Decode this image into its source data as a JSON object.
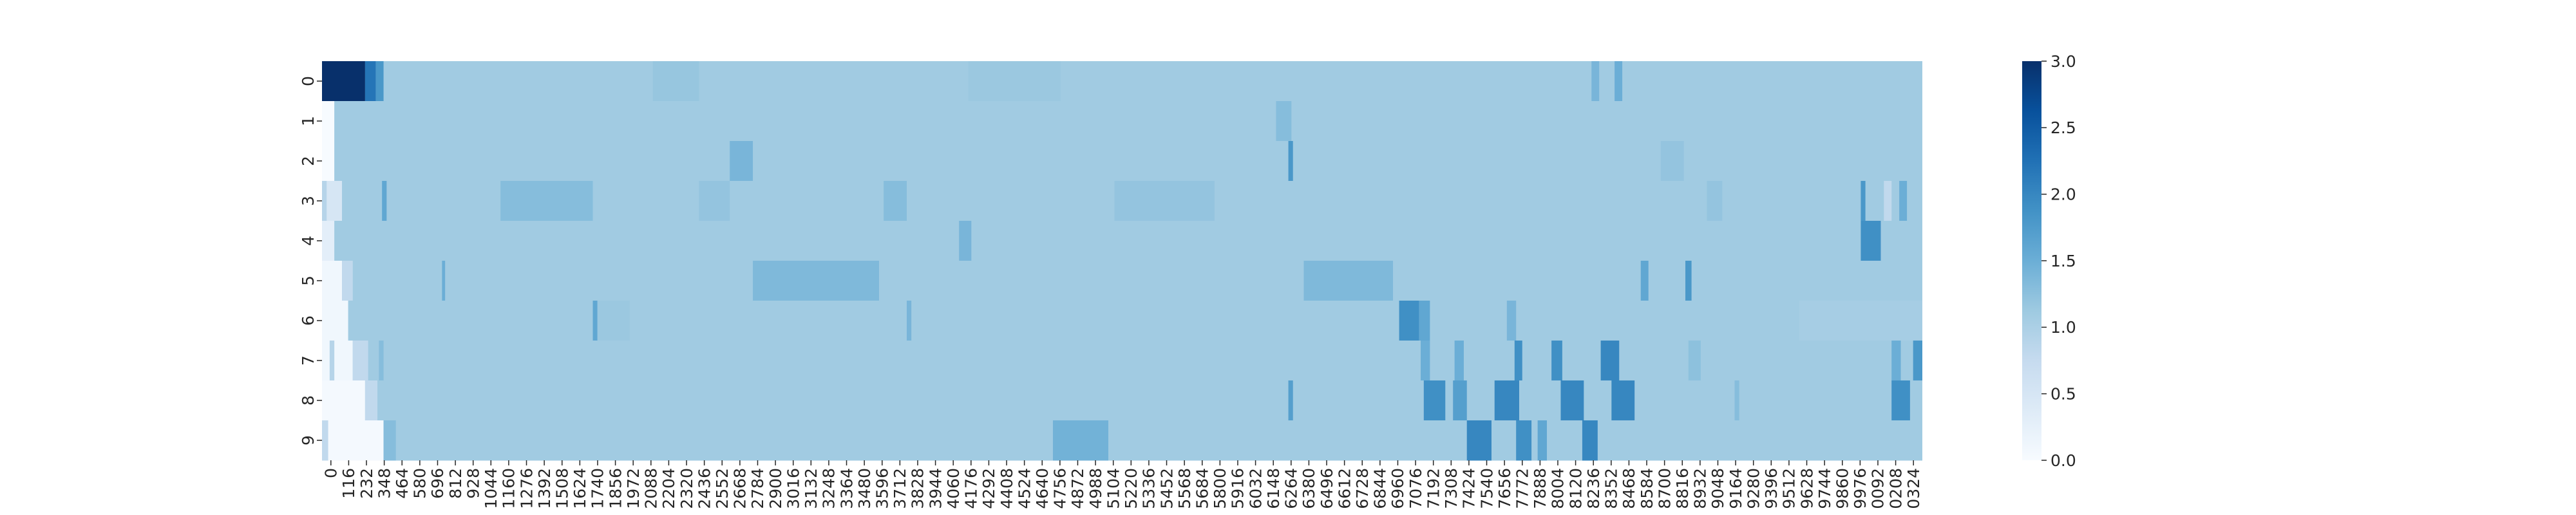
{
  "chart_data": {
    "type": "heatmap",
    "title": "",
    "xlabel": "",
    "ylabel": "",
    "y_categories": [
      "0",
      "1",
      "2",
      "3",
      "4",
      "5",
      "6",
      "7",
      "8",
      "9"
    ],
    "x_range": [
      0,
      10400
    ],
    "x_tick_labels": [
      "0",
      "116",
      "232",
      "348",
      "464",
      "580",
      "696",
      "812",
      "928",
      "1044",
      "1160",
      "1276",
      "1392",
      "1508",
      "1624",
      "1740",
      "1856",
      "1972",
      "2088",
      "2204",
      "2320",
      "2436",
      "2552",
      "2668",
      "2784",
      "2900",
      "3016",
      "3132",
      "3248",
      "3364",
      "3480",
      "3596",
      "3712",
      "3828",
      "3944",
      "4060",
      "4176",
      "4292",
      "4408",
      "4524",
      "4640",
      "4756",
      "4872",
      "4988",
      "5104",
      "5220",
      "5336",
      "5452",
      "5568",
      "5684",
      "5800",
      "5916",
      "6032",
      "6148",
      "6264",
      "6380",
      "6496",
      "6612",
      "6728",
      "6844",
      "6960",
      "7076",
      "7192",
      "7308",
      "7424",
      "7540",
      "7656",
      "7772",
      "7888",
      "8004",
      "8120",
      "8236",
      "8352",
      "8468",
      "8584",
      "8700",
      "8816",
      "8932",
      "9048",
      "9164",
      "9280",
      "9396",
      "9512",
      "9628",
      "9744",
      "9860",
      "9976",
      "0092",
      "0208",
      "0324"
    ],
    "colorbar": {
      "min": 0.0,
      "max": 3.0,
      "tick_labels": [
        "0.0",
        "0.5",
        "1.0",
        "1.5",
        "2.0",
        "2.5",
        "3.0"
      ],
      "colormap": "Blues"
    },
    "base_value": 1.1,
    "rows": [
      {
        "row": "0",
        "segments": [
          [
            0,
            280,
            3.0
          ],
          [
            280,
            350,
            2.2
          ],
          [
            350,
            400,
            1.8
          ],
          [
            2150,
            2450,
            1.18
          ],
          [
            4200,
            4800,
            1.15
          ],
          [
            8250,
            8300,
            1.4
          ],
          [
            8400,
            8450,
            1.5
          ]
        ]
      },
      {
        "row": "1",
        "segments": [
          [
            0,
            80,
            0.0
          ],
          [
            6200,
            6300,
            1.3
          ]
        ]
      },
      {
        "row": "2",
        "segments": [
          [
            0,
            80,
            0.0
          ],
          [
            2650,
            2800,
            1.4
          ],
          [
            6280,
            6310,
            1.8
          ],
          [
            8700,
            8850,
            1.2
          ]
        ]
      },
      {
        "row": "3",
        "segments": [
          [
            0,
            30,
            0.9
          ],
          [
            30,
            130,
            0.5
          ],
          [
            390,
            420,
            1.6
          ],
          [
            1160,
            1760,
            1.3
          ],
          [
            2450,
            2650,
            1.2
          ],
          [
            3650,
            3800,
            1.3
          ],
          [
            5150,
            5800,
            1.2
          ],
          [
            9000,
            9100,
            1.2
          ],
          [
            10000,
            10030,
            1.8
          ],
          [
            10150,
            10200,
            0.8
          ],
          [
            10250,
            10300,
            1.5
          ]
        ]
      },
      {
        "row": "4",
        "segments": [
          [
            0,
            80,
            0.3
          ],
          [
            4140,
            4220,
            1.4
          ],
          [
            10000,
            10130,
            1.9
          ]
        ]
      },
      {
        "row": "5",
        "segments": [
          [
            0,
            130,
            0.1
          ],
          [
            130,
            200,
            0.8
          ],
          [
            780,
            800,
            1.5
          ],
          [
            2800,
            3620,
            1.35
          ],
          [
            6380,
            6960,
            1.35
          ],
          [
            8570,
            8620,
            1.6
          ],
          [
            8860,
            8900,
            1.8
          ]
        ]
      },
      {
        "row": "6",
        "segments": [
          [
            0,
            170,
            0.1
          ],
          [
            1760,
            1790,
            1.6
          ],
          [
            1790,
            2000,
            1.15
          ],
          [
            3800,
            3830,
            1.4
          ],
          [
            7000,
            7130,
            1.9
          ],
          [
            7130,
            7200,
            1.6
          ],
          [
            7700,
            7760,
            1.4
          ],
          [
            9600,
            10400,
            1.05
          ]
        ]
      },
      {
        "row": "7",
        "segments": [
          [
            0,
            50,
            0.1
          ],
          [
            50,
            80,
            0.9
          ],
          [
            80,
            200,
            0.1
          ],
          [
            200,
            300,
            0.8
          ],
          [
            370,
            400,
            1.3
          ],
          [
            7140,
            7200,
            1.5
          ],
          [
            7360,
            7420,
            1.5
          ],
          [
            7750,
            7800,
            1.9
          ],
          [
            7990,
            8060,
            1.9
          ],
          [
            8310,
            8430,
            2.0
          ],
          [
            8880,
            8960,
            1.25
          ],
          [
            10200,
            10260,
            1.5
          ],
          [
            10340,
            10400,
            1.8
          ]
        ]
      },
      {
        "row": "8",
        "segments": [
          [
            0,
            280,
            0.05
          ],
          [
            280,
            360,
            0.8
          ],
          [
            6280,
            6310,
            1.7
          ],
          [
            7160,
            7300,
            1.9
          ],
          [
            7350,
            7440,
            1.7
          ],
          [
            7620,
            7780,
            2.0
          ],
          [
            8050,
            8200,
            2.0
          ],
          [
            8380,
            8530,
            2.0
          ],
          [
            9180,
            9210,
            1.3
          ],
          [
            10200,
            10320,
            1.9
          ]
        ]
      },
      {
        "row": "9",
        "segments": [
          [
            0,
            40,
            0.8
          ],
          [
            40,
            400,
            0.05
          ],
          [
            400,
            480,
            1.3
          ],
          [
            4750,
            5110,
            1.45
          ],
          [
            7440,
            7600,
            2.0
          ],
          [
            7760,
            7860,
            1.9
          ],
          [
            7900,
            7960,
            1.6
          ],
          [
            8190,
            8290,
            2.0
          ]
        ]
      }
    ]
  }
}
